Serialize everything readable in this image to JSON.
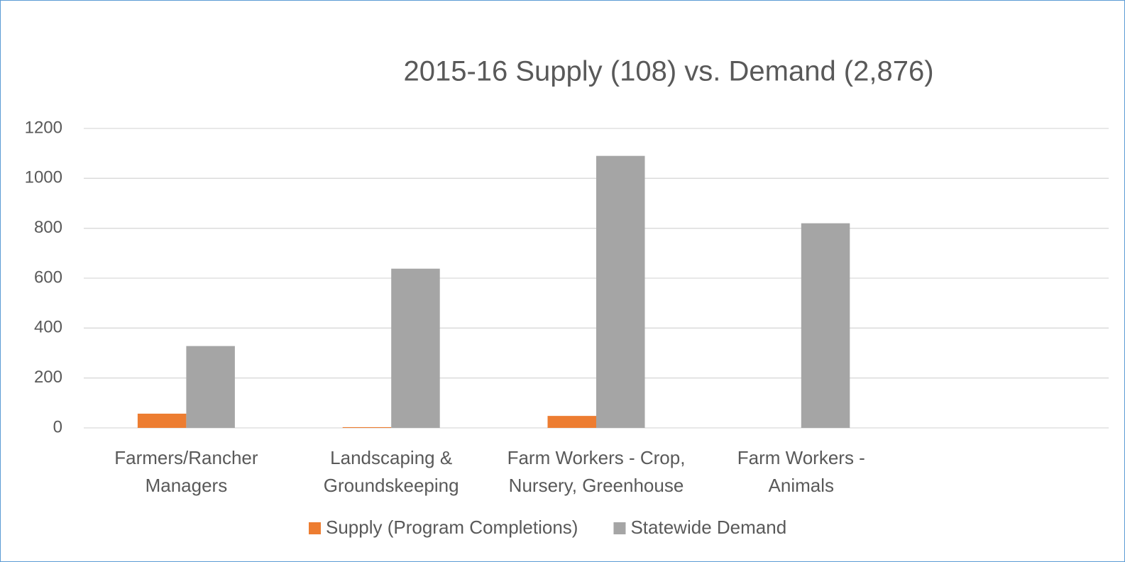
{
  "chart_data": {
    "type": "bar",
    "title": "2015-16 Supply (108)  vs. Demand (2,876)",
    "categories": [
      "Farmers/Rancher Managers",
      "Landscaping & Groundskeeping",
      "Farm Workers - Crop, Nursery, Greenhouse",
      "Farm Workers - Animals",
      null
    ],
    "series": [
      {
        "name": "Supply (Program Completions)",
        "color": "#ed7d31",
        "values": [
          57,
          3,
          48,
          0,
          null
        ]
      },
      {
        "name": "Statewide Demand",
        "color": "#a5a5a5",
        "values": [
          328,
          638,
          1090,
          820,
          null
        ]
      }
    ],
    "ylim": [
      0,
      1200
    ],
    "yticks": [
      0,
      200,
      400,
      600,
      800,
      1000,
      1200
    ],
    "grid": true,
    "legend": "bottom"
  }
}
